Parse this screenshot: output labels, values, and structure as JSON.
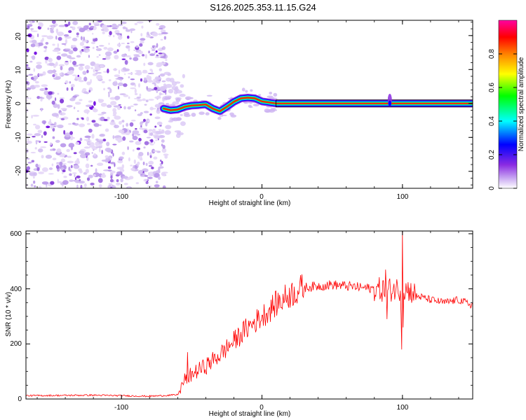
{
  "page_title": "S126.2025.353.11.15.G24",
  "chart_data": [
    {
      "type": "heatmap",
      "title": "S126.2025.353.11.15.G24",
      "xlabel": "Height of straight line (km)",
      "ylabel": "Frequency (Hz)",
      "xlim": [
        -168,
        150
      ],
      "ylim": [
        -25,
        24.5
      ],
      "xticks": [
        -100,
        0,
        100
      ],
      "yticks": [
        -20,
        -10,
        0,
        10,
        20
      ],
      "colorbar": {
        "label": "Normalized spectral amplitude",
        "range": [
          0,
          1
        ],
        "ticks": [
          0.0,
          0.2,
          0.4,
          0.6,
          0.8
        ],
        "colors": [
          "#ffffff",
          "#c9a8f2",
          "#8a2be2",
          "#0000ff",
          "#00ffff",
          "#00ff00",
          "#ffff00",
          "#ff8000",
          "#ff0000",
          "#ff00a0"
        ]
      },
      "noise_region_x": [
        -168,
        -70
      ],
      "ridge_start_x": -70,
      "ridge_path": [
        {
          "x": -70,
          "f": -1.5
        },
        {
          "x": -65,
          "f": -2.0
        },
        {
          "x": -60,
          "f": -1.8
        },
        {
          "x": -55,
          "f": -1.0
        },
        {
          "x": -50,
          "f": -0.6
        },
        {
          "x": -45,
          "f": -0.5
        },
        {
          "x": -40,
          "f": -0.3
        },
        {
          "x": -35,
          "f": -1.5
        },
        {
          "x": -30,
          "f": -2.3
        },
        {
          "x": -25,
          "f": -1.0
        },
        {
          "x": -20,
          "f": 0.5
        },
        {
          "x": -15,
          "f": 1.5
        },
        {
          "x": -10,
          "f": 1.7
        },
        {
          "x": -5,
          "f": 1.5
        },
        {
          "x": 0,
          "f": 0.6
        },
        {
          "x": 5,
          "f": 0.3
        },
        {
          "x": 10,
          "f": 0.0
        },
        {
          "x": 90,
          "f": 0.0
        },
        {
          "x": 150,
          "f": 0.0
        }
      ]
    },
    {
      "type": "line",
      "xlabel": "Height of straight line (km)",
      "ylabel": "SNR (10 * v/v)",
      "xlim": [
        -168,
        150
      ],
      "ylim": [
        0,
        610
      ],
      "xticks": [
        -100,
        0,
        100
      ],
      "yticks": [
        0,
        200,
        400,
        600
      ],
      "color": "#ff0000",
      "envelope": [
        {
          "x": -168,
          "y": 12
        },
        {
          "x": -120,
          "y": 14
        },
        {
          "x": -80,
          "y": 10
        },
        {
          "x": -60,
          "y": 15
        },
        {
          "x": -55,
          "y": 70
        },
        {
          "x": -50,
          "y": 90
        },
        {
          "x": -40,
          "y": 120
        },
        {
          "x": -30,
          "y": 160
        },
        {
          "x": -20,
          "y": 210
        },
        {
          "x": -10,
          "y": 260
        },
        {
          "x": 0,
          "y": 300
        },
        {
          "x": 10,
          "y": 345
        },
        {
          "x": 20,
          "y": 380
        },
        {
          "x": 30,
          "y": 405
        },
        {
          "x": 40,
          "y": 410
        },
        {
          "x": 50,
          "y": 415
        },
        {
          "x": 60,
          "y": 410
        },
        {
          "x": 70,
          "y": 405
        },
        {
          "x": 80,
          "y": 400
        },
        {
          "x": 88,
          "y": 395
        },
        {
          "x": 95,
          "y": 400
        },
        {
          "x": 100,
          "y": 400
        },
        {
          "x": 105,
          "y": 395
        },
        {
          "x": 110,
          "y": 375
        },
        {
          "x": 120,
          "y": 360
        },
        {
          "x": 130,
          "y": 350
        },
        {
          "x": 140,
          "y": 360
        },
        {
          "x": 150,
          "y": 340
        }
      ],
      "spikes": [
        {
          "x": -53,
          "y": 170
        },
        {
          "x": -52,
          "y": 60
        },
        {
          "x": 88,
          "y": 470
        },
        {
          "x": 89,
          "y": 290
        },
        {
          "x": 99,
          "y": 310
        },
        {
          "x": 99.5,
          "y": 180
        },
        {
          "x": 100,
          "y": 610
        },
        {
          "x": 100.5,
          "y": 260
        }
      ]
    }
  ]
}
